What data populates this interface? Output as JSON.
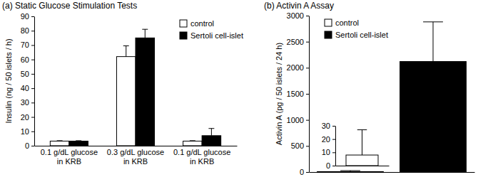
{
  "chart_data": [
    {
      "type": "bar",
      "title": "(a) Static Glucose Stimulation Tests",
      "ylabel": "Insulin (ng / 50 islets / h)",
      "categories": [
        "0.1 g/dL glucose in KRB",
        "0.3 g/dL glucose in KRB",
        "0.1 g/dL glucose in KRB"
      ],
      "series": [
        {
          "name": "control",
          "color": "#ffffff",
          "values": [
            3.2,
            62,
            3.2
          ],
          "errors": [
            0.3,
            7.5,
            0.3
          ]
        },
        {
          "name": "Sertoli cell-islet",
          "color": "#000000",
          "values": [
            3.2,
            75,
            7
          ],
          "errors": [
            0.3,
            6,
            5
          ]
        }
      ],
      "ylim": [
        0,
        90
      ],
      "yticks": [
        0,
        10,
        20,
        30,
        40,
        50,
        60,
        70,
        80,
        90
      ],
      "legend": "upper right"
    },
    {
      "type": "bar",
      "title": "(b) Activin A Assay",
      "ylabel": "Activin A (pg / 50 islets / 24 h)",
      "categories": [
        null,
        null
      ],
      "series": [
        {
          "name": "control",
          "color": "#ffffff",
          "values": [
            8,
            null
          ],
          "errors": [
            19,
            null
          ]
        },
        {
          "name": "Sertoli cell-islet",
          "color": "#000000",
          "values": [
            null,
            2120
          ],
          "errors": [
            null,
            760
          ]
        }
      ],
      "ylim": [
        0,
        3000
      ],
      "yticks": [
        0,
        500,
        1000,
        1500,
        2000,
        2500,
        3000
      ],
      "legend": "upper left"
    },
    {
      "type": "bar",
      "categories": [
        null
      ],
      "values": [
        8
      ],
      "errors": [
        19
      ],
      "color": "#ffffff",
      "ylim": [
        0,
        30
      ],
      "yticks": [
        0,
        10,
        20,
        30
      ]
    }
  ]
}
